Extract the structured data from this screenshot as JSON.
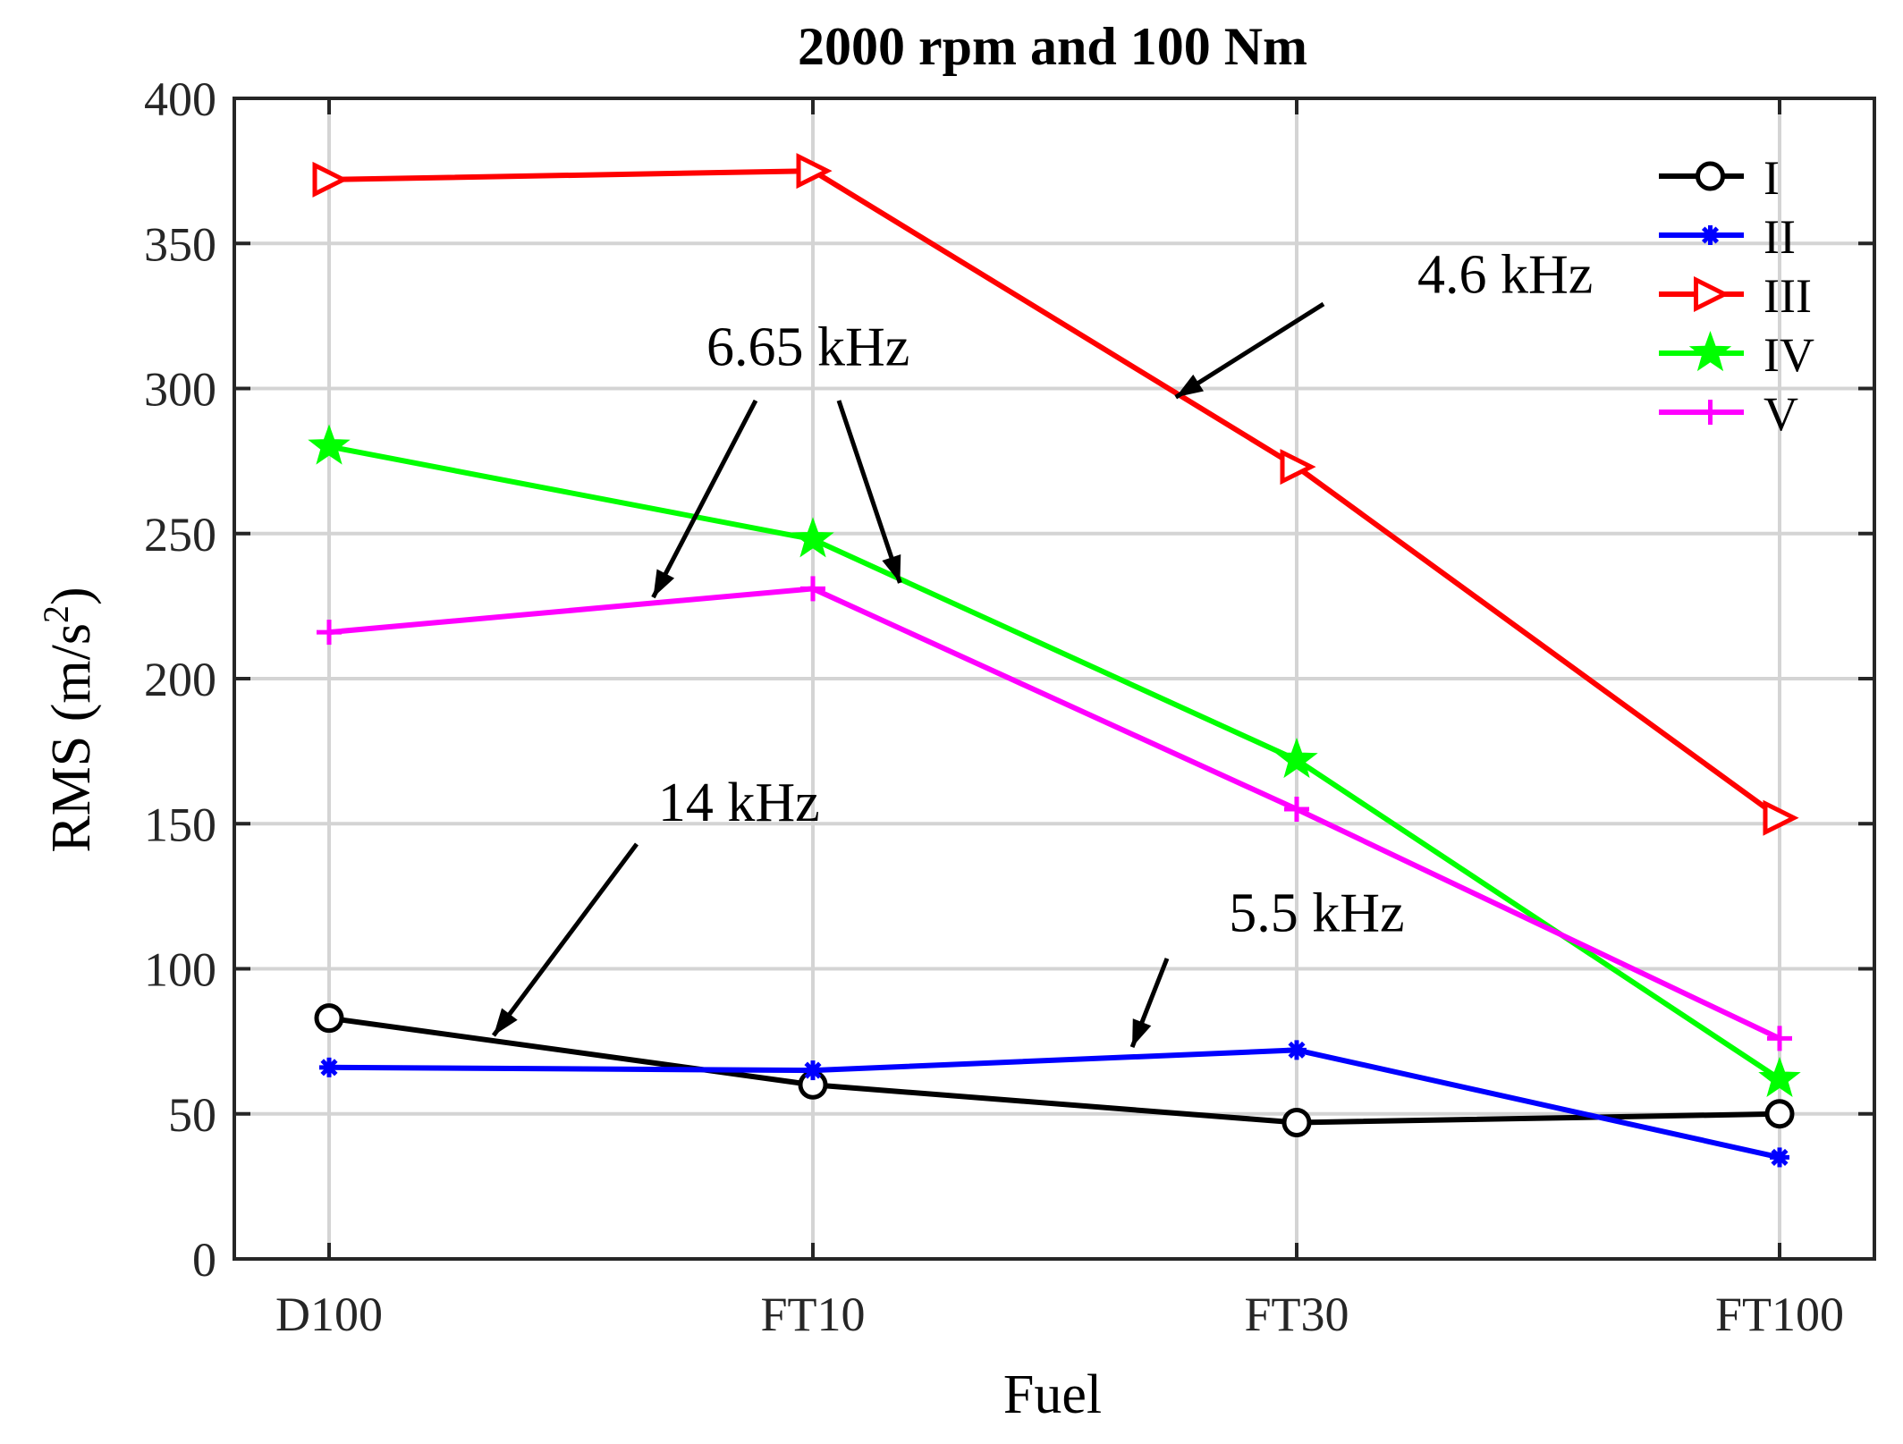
{
  "chart_data": {
    "type": "line",
    "title": "2000 rpm and 100 Nm",
    "xlabel": "Fuel",
    "ylabel": "RMS (m/s",
    "ylabel_sup": "2",
    "ylabel_close": ")",
    "categories": [
      "D100",
      "FT10",
      "FT30",
      "FT100"
    ],
    "ylim": [
      0,
      400
    ],
    "yticks": [
      0,
      50,
      100,
      150,
      200,
      250,
      300,
      350,
      400
    ],
    "ytick_labels": [
      "0",
      "50",
      "100",
      "150",
      "200",
      "250",
      "300",
      "350",
      "400"
    ],
    "grid": true,
    "legend_position": "top-right",
    "series": [
      {
        "name": "I",
        "color": "#000000",
        "marker": "circle",
        "values": [
          83,
          60,
          47,
          50
        ]
      },
      {
        "name": "II",
        "color": "#0000FF",
        "marker": "asterisk",
        "values": [
          66,
          65,
          72,
          35
        ]
      },
      {
        "name": "III",
        "color": "#FF0000",
        "marker": "triangle-right",
        "values": [
          372,
          375,
          273,
          152
        ]
      },
      {
        "name": "IV",
        "color": "#00FF00",
        "marker": "star",
        "values": [
          280,
          248,
          172,
          62
        ]
      },
      {
        "name": "V",
        "color": "#FF00FF",
        "marker": "plus",
        "values": [
          216,
          231,
          155,
          76
        ]
      }
    ],
    "annotations": [
      {
        "text": "4.6 kHz",
        "label_at": [
          2.25,
          333
        ],
        "arrows_to": [
          [
            1.75,
            297
          ]
        ]
      },
      {
        "text": "6.65 kHz",
        "label_at": [
          0.78,
          308
        ],
        "arrows_to": [
          [
            0.67,
            228
          ],
          [
            1.18,
            233
          ]
        ]
      },
      {
        "text": "14 kHz",
        "label_at": [
          0.68,
          151
        ],
        "arrows_to": [
          [
            0.34,
            77
          ]
        ]
      },
      {
        "text": "5.5 kHz",
        "label_at": [
          1.86,
          113
        ],
        "arrows_to": [
          [
            1.66,
            73
          ]
        ]
      }
    ]
  }
}
